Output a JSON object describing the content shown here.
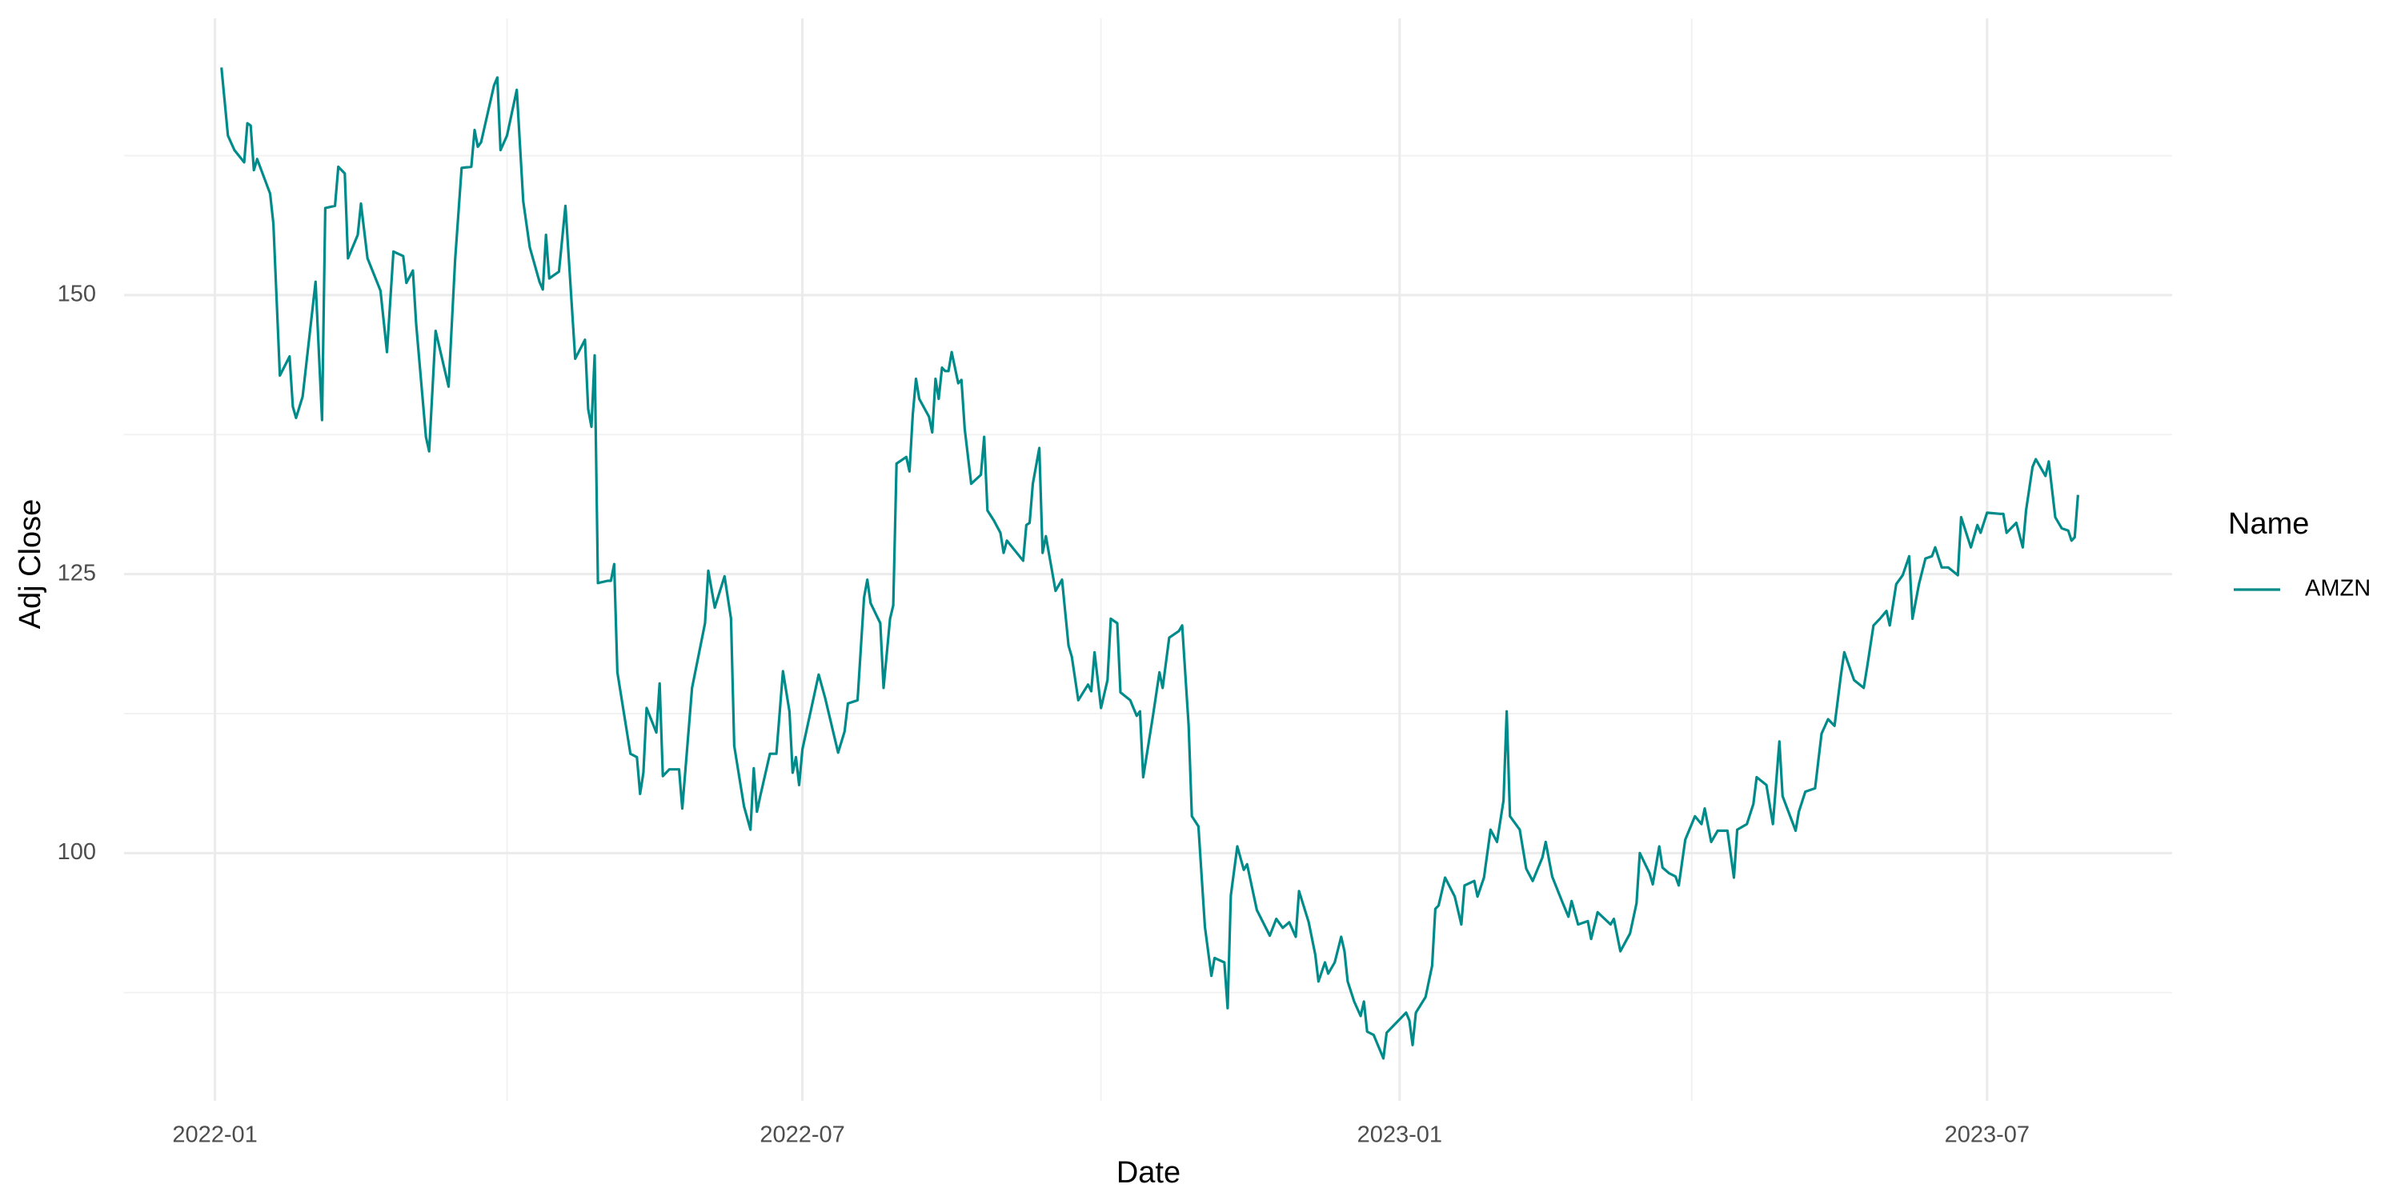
{
  "chart_data": {
    "type": "line",
    "x_label": "Date",
    "y_label": "Adj Close",
    "legend_title": "Name",
    "legend_position": "right",
    "grid": true,
    "xlim": [
      -28,
      603
    ],
    "xticks": [
      {
        "value": 0,
        "label": "2022-01"
      },
      {
        "value": 181,
        "label": "2022-07"
      },
      {
        "value": 365,
        "label": "2023-01"
      },
      {
        "value": 546,
        "label": "2023-07"
      }
    ],
    "xminorticks": [
      90,
      273,
      455
    ],
    "ylim": [
      77.8,
      174.8
    ],
    "yticks": [
      100,
      125,
      150
    ],
    "yminorticks": [
      87.5,
      112.5,
      137.5,
      162.5
    ],
    "x": [
      2,
      4,
      6,
      9,
      10,
      11,
      12,
      13,
      17,
      18,
      20,
      23,
      24,
      25,
      27,
      31,
      33,
      34,
      37,
      38,
      40,
      41,
      44,
      45,
      47,
      51,
      53,
      55,
      58,
      59,
      61,
      62,
      65,
      66,
      68,
      72,
      74,
      76,
      79,
      80,
      81,
      82,
      86,
      87,
      88,
      90,
      93,
      95,
      97,
      100,
      101,
      102,
      103,
      106,
      108,
      111,
      114,
      115,
      116,
      117,
      118,
      121,
      122,
      123,
      124,
      128,
      130,
      131,
      132,
      133,
      136,
      137,
      138,
      140,
      143,
      144,
      147,
      151,
      152,
      154,
      157,
      159,
      160,
      163,
      165,
      166,
      167,
      168,
      171,
      173,
      175,
      177,
      178,
      179,
      180,
      181,
      186,
      188,
      192,
      194,
      195,
      198,
      200,
      201,
      202,
      205,
      206,
      208,
      209,
      210,
      213,
      214,
      215,
      216,
      217,
      220,
      221,
      222,
      223,
      224,
      225,
      226,
      227,
      229,
      230,
      231,
      233,
      236,
      237,
      238,
      240,
      242,
      243,
      244,
      249,
      250,
      251,
      252,
      254,
      255,
      256,
      259,
      261,
      263,
      264,
      266,
      269,
      270,
      271,
      273,
      275,
      276,
      278,
      279,
      282,
      284,
      285,
      286,
      289,
      291,
      292,
      294,
      297,
      298,
      300,
      301,
      303,
      305,
      307,
      308,
      311,
      312,
      313,
      315,
      317,
      318,
      321,
      325,
      327,
      329,
      331,
      333,
      334,
      337,
      339,
      340,
      342,
      343,
      345,
      347,
      348,
      349,
      351,
      353,
      354,
      355,
      357,
      359,
      360,
      361,
      364,
      367,
      368,
      369,
      370,
      373,
      375,
      376,
      377,
      379,
      382,
      384,
      385,
      388,
      389,
      391,
      393,
      395,
      397,
      398,
      399,
      402,
      404,
      406,
      409,
      410,
      412,
      415,
      417,
      418,
      420,
      423,
      424,
      426,
      430,
      431,
      433,
      436,
      438,
      439,
      442,
      443,
      445,
      446,
      448,
      450,
      451,
      453,
      456,
      458,
      459,
      461,
      463,
      466,
      468,
      469,
      472,
      474,
      475,
      478,
      480,
      482,
      483,
      487,
      488,
      490,
      493,
      495,
      497,
      499,
      501,
      502,
      505,
      508,
      509,
      511,
      513,
      515,
      516,
      518,
      520,
      522,
      523,
      525,
      527,
      529,
      530,
      532,
      534,
      537,
      538,
      541,
      543,
      544,
      546,
      550,
      551,
      552,
      555,
      557,
      558,
      560,
      561,
      564,
      565,
      567,
      569,
      571,
      572,
      573,
      574
    ],
    "series": [
      {
        "name": "AMZN",
        "color": "#008b8b",
        "values": [
          170.4,
          164.3,
          163,
          161.9,
          165.4,
          165.2,
          161.2,
          162.2,
          159.1,
          156.4,
          142.8,
          144.5,
          140,
          139,
          140.9,
          151.2,
          138.8,
          157.8,
          158,
          161.5,
          160.9,
          153.3,
          155.4,
          158.2,
          153.3,
          150.4,
          144.9,
          153.9,
          153.5,
          151.1,
          152.2,
          147.4,
          137.3,
          136,
          146.8,
          141.8,
          153.2,
          161.4,
          161.5,
          164.8,
          163.3,
          163.7,
          168.8,
          169.5,
          163,
          164.3,
          168.4,
          158.4,
          154.3,
          151.2,
          150.5,
          155.4,
          151.5,
          152.1,
          158,
          144.3,
          146,
          139.8,
          138.2,
          144.6,
          124.2,
          124.4,
          124.4,
          125.9,
          116.2,
          108.9,
          108.6,
          105.3,
          107.2,
          113,
          110.8,
          115.2,
          106.9,
          107.5,
          107.5,
          104,
          114.8,
          120.6,
          125.3,
          122,
          124.8,
          121,
          109.6,
          104.2,
          102.1,
          107.6,
          103.7,
          105.1,
          108.9,
          108.9,
          116.3,
          112.7,
          107.2,
          108.6,
          106.1,
          109.3,
          116,
          113.9,
          109,
          110.9,
          113.4,
          113.7,
          122.9,
          124.5,
          122.4,
          120.6,
          114.8,
          121,
          122.2,
          134.9,
          135.5,
          134.2,
          139.3,
          142.5,
          140.7,
          139.1,
          137.7,
          142.5,
          140.7,
          143.5,
          143.2,
          143.2,
          144.9,
          142.1,
          142.4,
          138,
          133.1,
          133.9,
          137.3,
          130.7,
          129.8,
          128.7,
          126.9,
          128,
          126.2,
          129.4,
          129.6,
          133.1,
          136.3,
          126.9,
          128.4,
          123.5,
          124.5,
          118.6,
          117.6,
          113.7,
          115.1,
          114.5,
          118,
          113,
          115.5,
          121,
          120.6,
          114.4,
          113.7,
          112.3,
          112.7,
          106.8,
          112.3,
          116.2,
          114.8,
          119.3,
          119.9,
          120.4,
          111.4,
          103.3,
          102.4,
          93.4,
          89,
          90.6,
          90.2,
          86.1,
          96.2,
          100.6,
          98.5,
          99,
          94.9,
          92.6,
          94.1,
          93.3,
          93.8,
          92.5,
          96.6,
          93.8,
          90.9,
          88.5,
          90.2,
          89.2,
          90.2,
          92.5,
          91.2,
          88.5,
          86.7,
          85.4,
          86.7,
          84,
          83.7,
          82.3,
          81.6,
          83.9,
          84.8,
          85.7,
          85,
          82.8,
          85.7,
          87.1,
          89.9,
          95,
          95.3,
          97.8,
          96.1,
          93.6,
          97.1,
          97.5,
          96.1,
          97.8,
          102.1,
          101,
          104.7,
          112.7,
          103.3,
          102.1,
          98.6,
          97.5,
          99.6,
          101,
          97.9,
          95.7,
          94.3,
          95.7,
          93.6,
          93.9,
          92.3,
          94.7,
          93.6,
          94.1,
          91.2,
          92.8,
          95.5,
          100,
          98.2,
          97.2,
          100.6,
          98.7,
          98.2,
          97.9,
          97.1,
          101.2,
          103.3,
          102.6,
          104,
          101,
          102,
          102,
          97.8,
          102.1,
          102.6,
          104.4,
          106.8,
          106.1,
          102.6,
          110,
          105.1,
          102,
          103.7,
          105.5,
          105.8,
          110.7,
          112,
          111.4,
          116,
          118,
          115.5,
          114.8,
          116.6,
          120.4,
          121,
          121.7,
          120.4,
          124.1,
          124.9,
          126.6,
          121,
          124.1,
          126.4,
          126.6,
          127.4,
          125.6,
          125.6,
          124.9,
          130.1,
          127.4,
          129.4,
          128.7,
          130.5,
          130.4,
          130.4,
          128.7,
          129.6,
          127.4,
          130.7,
          134.6,
          135.3,
          133.8,
          135.1,
          130.1,
          129.1,
          128.9,
          128,
          128.3,
          132.1
        ]
      }
    ]
  }
}
